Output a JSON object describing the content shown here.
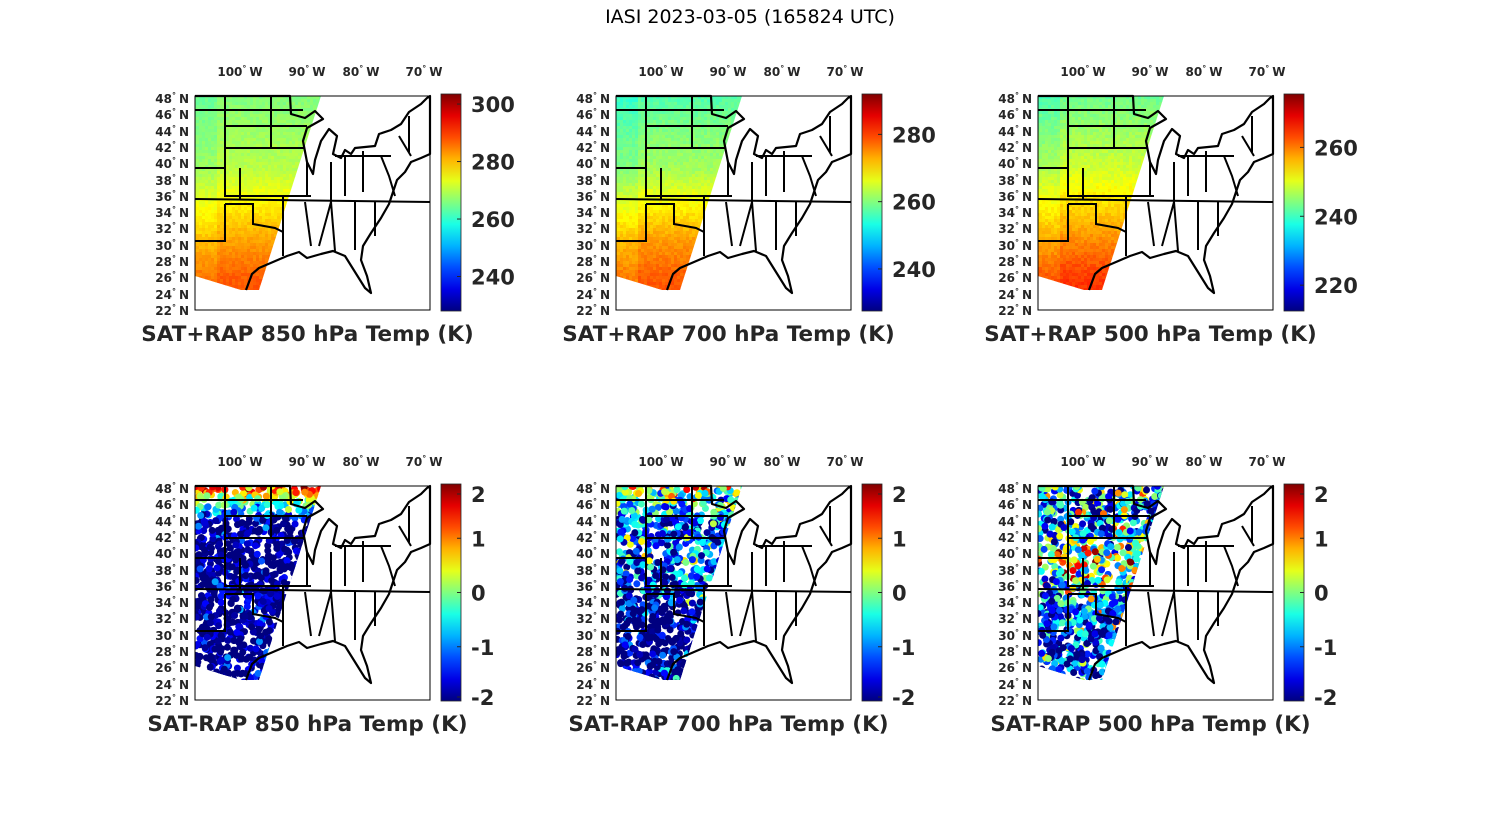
{
  "title": "IASI 2023-03-05 (165824 UTC)",
  "chart_data": [
    {
      "type": "heatmap",
      "title": "SAT+RAP 850 hPa Temp (K)",
      "kind": "abs",
      "clim": [
        228,
        303.5
      ],
      "cbar_ticks": [
        "240",
        "260",
        "280",
        "300"
      ],
      "cbar_tick_values": [
        240,
        260,
        280,
        300
      ],
      "swath_values_north_to_south": [
        266,
        268,
        270,
        276,
        282,
        287,
        289
      ],
      "lat_ticks": [
        "48",
        "46",
        "44",
        "42",
        "40",
        "38",
        "36",
        "34",
        "32",
        "30",
        "28",
        "26",
        "24",
        "22"
      ],
      "lon_ticks": [
        "100",
        "90",
        "80",
        "70"
      ],
      "lat_suffix": "N",
      "lon_suffix": "W"
    },
    {
      "type": "heatmap",
      "title": "SAT+RAP 700 hPa Temp (K)",
      "kind": "abs",
      "clim": [
        227.5,
        292
      ],
      "cbar_ticks": [
        "240",
        "260",
        "280"
      ],
      "cbar_tick_values": [
        240,
        260,
        280
      ],
      "swath_values_north_to_south": [
        257,
        260,
        262,
        268,
        274,
        278,
        280
      ],
      "lat_ticks": [
        "48",
        "46",
        "44",
        "42",
        "40",
        "38",
        "36",
        "34",
        "32",
        "30",
        "28",
        "26",
        "24",
        "22"
      ],
      "lon_ticks": [
        "100",
        "90",
        "80",
        "70"
      ],
      "lat_suffix": "N",
      "lon_suffix": "W"
    },
    {
      "type": "heatmap",
      "title": "SAT+RAP 500 hPa Temp (K)",
      "kind": "abs",
      "clim": [
        212.5,
        275.5
      ],
      "cbar_ticks": [
        "220",
        "240",
        "260"
      ],
      "cbar_tick_values": [
        220,
        240,
        260
      ],
      "swath_values_north_to_south": [
        243,
        246,
        249,
        254,
        259,
        264,
        266
      ],
      "lat_ticks": [
        "48",
        "46",
        "44",
        "42",
        "40",
        "38",
        "36",
        "34",
        "32",
        "30",
        "28",
        "26",
        "24",
        "22"
      ],
      "lon_ticks": [
        "100",
        "90",
        "80",
        "70"
      ],
      "lat_suffix": "N",
      "lon_suffix": "W"
    },
    {
      "type": "scatter",
      "title": "SAT-RAP 850 hPa Temp (K)",
      "kind": "diff",
      "clim": [
        -2,
        2
      ],
      "cbar_ticks": [
        "2",
        "1",
        "0",
        "-1",
        "-2"
      ],
      "cbar_tick_values": [
        2,
        1,
        0,
        -1,
        -2
      ],
      "swath_values_north_to_south": [
        1.5,
        -2,
        -2,
        -2,
        -2,
        -2,
        -2
      ],
      "spread": 0.6,
      "lat_ticks": [
        "48",
        "46",
        "44",
        "42",
        "40",
        "38",
        "36",
        "34",
        "32",
        "30",
        "28",
        "26",
        "24",
        "22"
      ],
      "lon_ticks": [
        "100",
        "90",
        "80",
        "70"
      ],
      "lat_suffix": "N",
      "lon_suffix": "W"
    },
    {
      "type": "scatter",
      "title": "SAT-RAP 700 hPa Temp (K)",
      "kind": "diff",
      "clim": [
        -2,
        2
      ],
      "cbar_ticks": [
        "2",
        "1",
        "0",
        "-1",
        "-2"
      ],
      "cbar_tick_values": [
        2,
        1,
        0,
        -1,
        -2
      ],
      "swath_values_north_to_south": [
        0.5,
        -1.2,
        -1.0,
        -1.5,
        -2,
        -2,
        -2
      ],
      "spread": 1.0,
      "lat_ticks": [
        "48",
        "46",
        "44",
        "42",
        "40",
        "38",
        "36",
        "34",
        "32",
        "30",
        "28",
        "26",
        "24",
        "22"
      ],
      "lon_ticks": [
        "100",
        "90",
        "80",
        "70"
      ],
      "lat_suffix": "N",
      "lon_suffix": "W"
    },
    {
      "type": "scatter",
      "title": "SAT-RAP 500 hPa Temp (K)",
      "kind": "diff",
      "clim": [
        -2,
        2
      ],
      "cbar_ticks": [
        "2",
        "1",
        "0",
        "-1",
        "-2"
      ],
      "cbar_tick_values": [
        2,
        1,
        0,
        -1,
        -2
      ],
      "swath_values_north_to_south": [
        -0.5,
        -1.2,
        0.2,
        -1.0,
        -1.4,
        -1.5,
        -1.6
      ],
      "spread": 1.2,
      "lat_ticks": [
        "48",
        "46",
        "44",
        "42",
        "40",
        "38",
        "36",
        "34",
        "32",
        "30",
        "28",
        "26",
        "24",
        "22"
      ],
      "lon_ticks": [
        "100",
        "90",
        "80",
        "70"
      ],
      "lat_suffix": "N",
      "lon_suffix": "W"
    }
  ]
}
